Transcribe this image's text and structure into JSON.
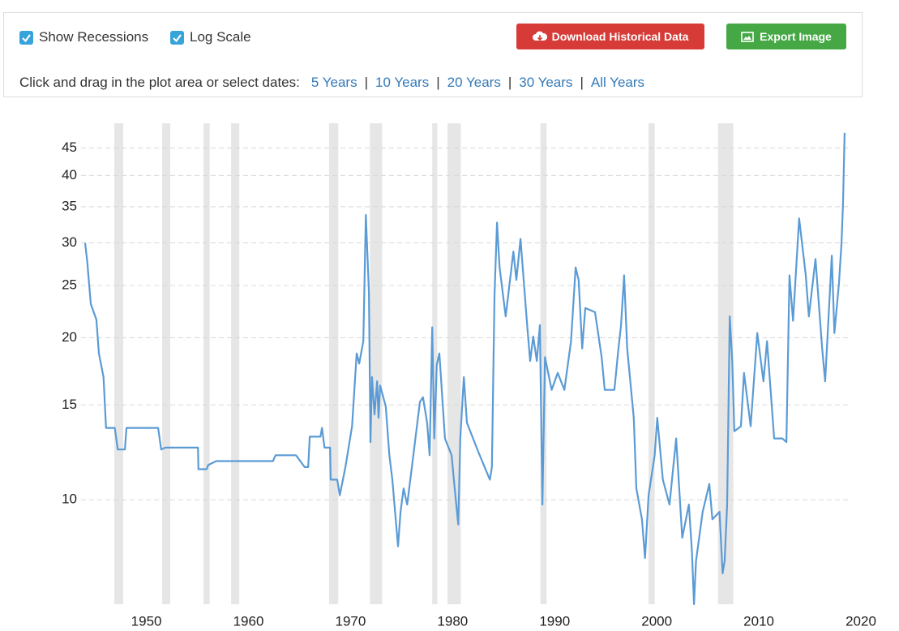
{
  "controls": {
    "checkboxes": [
      {
        "label": "Show Recessions",
        "checked": true
      },
      {
        "label": "Log Scale",
        "checked": true
      }
    ],
    "buttons": [
      {
        "label": "Download Historical Data",
        "color": "#d63b37"
      },
      {
        "label": "Export Image",
        "color": "#45a845"
      }
    ],
    "prompt": "Click and drag in the plot area or select dates:",
    "ranges": [
      "5 Years",
      "10 Years",
      "20 Years",
      "30 Years",
      "All Years"
    ],
    "separator": "|"
  },
  "chart_data": {
    "type": "line",
    "log_scale": true,
    "grid": true,
    "xlim": [
      1943.6,
      2020
    ],
    "xticks": [
      1950,
      1960,
      1970,
      1980,
      1990,
      2000,
      2010,
      2020
    ],
    "ylim": [
      6.4,
      50
    ],
    "yticks": [
      10,
      15,
      20,
      25,
      30,
      35,
      40,
      45
    ],
    "recession_color": "#e6e6e6",
    "recessions": [
      [
        1946.86,
        1947.73
      ],
      [
        1951.55,
        1952.34
      ],
      [
        1955.6,
        1956.2
      ],
      [
        1958.3,
        1959.1
      ],
      [
        1967.9,
        1968.8
      ],
      [
        1971.9,
        1973.1
      ],
      [
        1978.0,
        1978.5
      ],
      [
        1979.5,
        1980.8
      ],
      [
        1988.6,
        1989.2
      ],
      [
        1999.2,
        1999.8
      ],
      [
        2006.0,
        2007.5
      ]
    ],
    "series": [
      {
        "color": "#5b9bd5",
        "x": [
          1944.0,
          1944.2,
          1944.55,
          1945.1,
          1945.35,
          1945.8,
          1946.05,
          1946.9,
          1947.2,
          1947.9,
          1948.05,
          1949.95,
          1951.15,
          1951.45,
          1951.85,
          1955.05,
          1955.1,
          1955.9,
          1956.05,
          1956.85,
          1962.4,
          1962.65,
          1964.65,
          1965.5,
          1965.85,
          1966.0,
          1967.05,
          1967.2,
          1967.45,
          1968.0,
          1968.05,
          1968.7,
          1968.95,
          1969.5,
          1970.15,
          1970.6,
          1970.85,
          1971.25,
          1971.5,
          1971.8,
          1971.95,
          1972.1,
          1972.35,
          1972.6,
          1972.75,
          1972.9,
          1973.45,
          1973.8,
          1974.1,
          1974.65,
          1974.9,
          1975.2,
          1975.55,
          1976.15,
          1976.8,
          1977.1,
          1977.5,
          1977.75,
          1978.0,
          1978.2,
          1978.45,
          1978.7,
          1979.25,
          1979.9,
          1980.2,
          1980.55,
          1980.75,
          1981.1,
          1981.4,
          1982.5,
          1983.65,
          1983.85,
          1984.1,
          1984.35,
          1984.6,
          1985.2,
          1985.95,
          1986.25,
          1986.65,
          1987.3,
          1987.6,
          1987.9,
          1988.25,
          1988.55,
          1988.8,
          1989.05,
          1989.7,
          1990.3,
          1990.95,
          1991.6,
          1992.05,
          1992.35,
          1992.7,
          1993.0,
          1993.95,
          1994.6,
          1994.9,
          1995.85,
          1996.2,
          1996.5,
          1996.8,
          1997.1,
          1997.75,
          1998.0,
          1998.55,
          1998.85,
          1999.2,
          1999.8,
          2000.05,
          2000.6,
          2001.25,
          2001.9,
          2002.5,
          2003.15,
          2003.45,
          2003.65,
          2003.85,
          2004.5,
          2005.15,
          2005.45,
          2006.15,
          2006.45,
          2006.65,
          2006.9,
          2007.15,
          2007.4,
          2007.6,
          2008.25,
          2008.55,
          2009.2,
          2009.85,
          2010.45,
          2010.8,
          2011.5,
          2012.3,
          2012.7,
          2013.0,
          2013.35,
          2013.95,
          2014.6,
          2014.9,
          2015.55,
          2016.2,
          2016.5,
          2017.15,
          2017.4,
          2017.85,
          2018.1,
          2018.25,
          2018.4
        ],
        "values": [
          30.0,
          27.7,
          23.1,
          21.6,
          18.7,
          16.9,
          13.6,
          13.6,
          12.4,
          12.4,
          13.6,
          13.6,
          13.6,
          12.4,
          12.5,
          12.5,
          11.4,
          11.4,
          11.6,
          11.8,
          11.8,
          12.1,
          12.1,
          11.5,
          11.5,
          13.1,
          13.1,
          13.6,
          12.5,
          12.5,
          10.9,
          10.9,
          10.2,
          11.5,
          13.7,
          18.7,
          17.9,
          19.7,
          33.8,
          24.3,
          12.8,
          16.9,
          14.4,
          16.6,
          14.2,
          16.3,
          14.9,
          12.1,
          10.9,
          8.2,
          9.5,
          10.5,
          9.8,
          12.1,
          15.2,
          15.5,
          13.9,
          12.1,
          20.9,
          13.0,
          17.8,
          18.7,
          13.0,
          12.1,
          10.5,
          9.0,
          13.0,
          16.9,
          13.9,
          12.3,
          10.9,
          11.5,
          23.9,
          32.7,
          27.0,
          21.9,
          28.9,
          25.6,
          30.5,
          21.1,
          18.1,
          20.1,
          18.1,
          21.1,
          9.8,
          18.4,
          16.0,
          17.2,
          16.0,
          19.7,
          27.0,
          25.6,
          19.1,
          22.7,
          22.3,
          18.4,
          16.0,
          16.0,
          18.7,
          21.1,
          26.1,
          19.1,
          14.2,
          10.5,
          9.2,
          7.8,
          10.2,
          12.1,
          14.2,
          10.9,
          9.8,
          13.0,
          8.5,
          9.8,
          8.0,
          6.4,
          7.7,
          9.5,
          10.7,
          9.2,
          9.5,
          7.3,
          7.7,
          9.8,
          21.9,
          18.1,
          13.4,
          13.7,
          17.2,
          13.7,
          20.4,
          16.6,
          19.7,
          13.0,
          13.0,
          12.8,
          26.1,
          21.5,
          33.3,
          26.1,
          21.9,
          28.0,
          19.1,
          16.6,
          28.4,
          20.4,
          25.2,
          30.0,
          35.7,
          48.0
        ]
      }
    ]
  }
}
